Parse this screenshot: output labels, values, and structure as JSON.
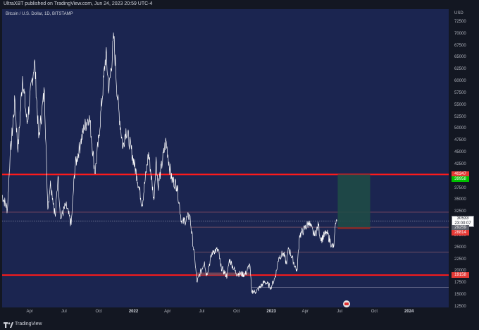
{
  "header": {
    "publisher": "UltraXBT published on TradingView.com, Jun 24, 2023 20:59 UTC-4"
  },
  "chart": {
    "symbol": "Bitcoin / U.S. Dollar, 1D, BITSTAMP",
    "currency": "USD"
  },
  "footer": {
    "brand": "TradingView"
  },
  "colors": {
    "background": "#1b2550",
    "line": "#ffffff",
    "support_resistance": "#ff1a1a",
    "target_zone": "#1e4d45",
    "stop_zone": "#7a2b2b",
    "take_profit": "#00c000",
    "stop_loss": "#e53935"
  },
  "icons": [
    "tradingview-logo-icon",
    "globe-icon"
  ],
  "chart_data": {
    "type": "line",
    "title": "Bitcoin / U.S. Dollar, 1D, BITSTAMP",
    "xlabel": "",
    "ylabel": "USD",
    "ylim": [
      12500,
      75000
    ],
    "grid": false,
    "price_ticks": [
      "72500",
      "70000",
      "67500",
      "65000",
      "62500",
      "60000",
      "57500",
      "55000",
      "52500",
      "50000",
      "47500",
      "45000",
      "42500",
      "40000",
      "37500",
      "35000",
      "32500",
      "30000",
      "27500",
      "25000",
      "22500",
      "20000",
      "17500",
      "15000",
      "12500"
    ],
    "price_tick_values": [
      72500,
      70000,
      67500,
      65000,
      62500,
      60000,
      57500,
      55000,
      52500,
      50000,
      47500,
      45000,
      42500,
      40000,
      37500,
      35000,
      32500,
      30000,
      27500,
      25000,
      22500,
      20000,
      17500,
      15000,
      12500
    ],
    "time_ticks": [
      {
        "label": "Apr",
        "date": "2021-04-01",
        "major": false
      },
      {
        "label": "Jul",
        "date": "2021-07-01",
        "major": false
      },
      {
        "label": "Oct",
        "date": "2021-10-01",
        "major": false
      },
      {
        "label": "2022",
        "date": "2022-01-01",
        "major": true
      },
      {
        "label": "Apr",
        "date": "2022-04-01",
        "major": false
      },
      {
        "label": "Jul",
        "date": "2022-07-01",
        "major": false
      },
      {
        "label": "Oct",
        "date": "2022-10-01",
        "major": false
      },
      {
        "label": "2023",
        "date": "2023-01-01",
        "major": true
      },
      {
        "label": "Apr",
        "date": "2023-04-01",
        "major": false
      },
      {
        "label": "Jul",
        "date": "2023-07-01",
        "major": false
      },
      {
        "label": "Oct",
        "date": "2023-10-01",
        "major": false
      },
      {
        "label": "2024",
        "date": "2024-01-01",
        "major": true
      }
    ],
    "x_range": [
      "2021-01-18",
      "2024-04-15"
    ],
    "series": [
      {
        "values": [
          [
            "2021-01-18",
            36000
          ],
          [
            "2021-02-01",
            33000
          ],
          [
            "2021-02-08",
            44000
          ],
          [
            "2021-02-21",
            56000
          ],
          [
            "2021-03-01",
            45000
          ],
          [
            "2021-03-13",
            61000
          ],
          [
            "2021-03-25",
            51000
          ],
          [
            "2021-04-14",
            64500
          ],
          [
            "2021-04-25",
            48000
          ],
          [
            "2021-05-10",
            58000
          ],
          [
            "2021-05-19",
            33000
          ],
          [
            "2021-05-26",
            39000
          ],
          [
            "2021-06-08",
            31500
          ],
          [
            "2021-06-15",
            40000
          ],
          [
            "2021-06-22",
            31000
          ],
          [
            "2021-07-06",
            34000
          ],
          [
            "2021-07-20",
            29800
          ],
          [
            "2021-07-30",
            42000
          ],
          [
            "2021-08-14",
            47000
          ],
          [
            "2021-08-23",
            50000
          ],
          [
            "2021-09-06",
            52800
          ],
          [
            "2021-09-21",
            40500
          ],
          [
            "2021-10-01",
            48000
          ],
          [
            "2021-10-20",
            66000
          ],
          [
            "2021-10-28",
            58000
          ],
          [
            "2021-11-10",
            69000
          ],
          [
            "2021-11-20",
            56000
          ],
          [
            "2021-12-04",
            46000
          ],
          [
            "2021-12-12",
            50000
          ],
          [
            "2021-12-22",
            47000
          ],
          [
            "2022-01-10",
            40000
          ],
          [
            "2022-01-24",
            34000
          ],
          [
            "2022-02-10",
            45000
          ],
          [
            "2022-02-24",
            35000
          ],
          [
            "2022-03-02",
            44000
          ],
          [
            "2022-03-07",
            37800
          ],
          [
            "2022-03-28",
            47500
          ],
          [
            "2022-04-11",
            39500
          ],
          [
            "2022-04-26",
            38000
          ],
          [
            "2022-05-09",
            30000
          ],
          [
            "2022-05-30",
            31700
          ],
          [
            "2022-06-13",
            22000
          ],
          [
            "2022-06-18",
            17700
          ],
          [
            "2022-07-08",
            22000
          ],
          [
            "2022-07-13",
            19000
          ],
          [
            "2022-07-30",
            24300
          ],
          [
            "2022-08-14",
            24400
          ],
          [
            "2022-08-20",
            21000
          ],
          [
            "2022-09-06",
            18800
          ],
          [
            "2022-09-12",
            22500
          ],
          [
            "2022-09-30",
            19500
          ],
          [
            "2022-10-24",
            19300
          ],
          [
            "2022-11-05",
            21400
          ],
          [
            "2022-11-10",
            15800
          ],
          [
            "2022-11-21",
            15600
          ],
          [
            "2022-12-15",
            17800
          ],
          [
            "2022-12-31",
            16600
          ],
          [
            "2023-01-12",
            18900
          ],
          [
            "2023-01-21",
            22900
          ],
          [
            "2023-02-02",
            23800
          ],
          [
            "2023-02-10",
            21600
          ],
          [
            "2023-02-16",
            24800
          ],
          [
            "2023-03-10",
            20000
          ],
          [
            "2023-03-17",
            27500
          ],
          [
            "2023-04-11",
            30200
          ],
          [
            "2023-04-25",
            27400
          ],
          [
            "2023-05-06",
            29600
          ],
          [
            "2023-05-12",
            26500
          ],
          [
            "2023-05-28",
            28200
          ],
          [
            "2023-06-10",
            25500
          ],
          [
            "2023-06-15",
            25000
          ],
          [
            "2023-06-21",
            30000
          ],
          [
            "2023-06-24",
            30533
          ]
        ]
      }
    ],
    "horizontal_lines": [
      {
        "price": 40347,
        "style": "solid",
        "color": "#ff1a1a",
        "width": 2,
        "start": "2021-01-18"
      },
      {
        "price": 19158,
        "style": "solid",
        "color": "#ff1a1a",
        "width": 2,
        "start": "2021-01-18"
      },
      {
        "price": 32400,
        "style": "thin",
        "color": "#b05a6a",
        "width": 0.7,
        "start": "2021-01-18"
      },
      {
        "price": 30533,
        "style": "dotted",
        "color": "#8a8fa8",
        "width": 0.7,
        "start": "2021-01-18"
      },
      {
        "price": 29259,
        "style": "thin",
        "color": "#8a5a6a",
        "width": 0.7,
        "start": "2022-06-01"
      },
      {
        "price": 24000,
        "style": "thin",
        "color": "#8a5a6a",
        "width": 0.7,
        "start": "2022-06-13"
      },
      {
        "price": 16600,
        "style": "thin",
        "color": "#7a7d99",
        "width": 0.7,
        "start": "2022-11-10"
      }
    ],
    "zones": [
      {
        "from_date": "2022-06-18",
        "to_date": "2022-11-05",
        "low": 19100,
        "high": 19700,
        "color": "#7a4a5a"
      }
    ],
    "position": {
      "entry": 29259,
      "take_profit": 40347,
      "stop_loss": 28814,
      "start": "2023-06-26",
      "end": "2023-09-20"
    },
    "price_labels": [
      {
        "text": "40347",
        "price": 40347,
        "color": "#e53935"
      },
      {
        "text": "39958",
        "price": 39400,
        "color": "#00c000"
      },
      {
        "text": "30533",
        "text2": "23:00:07",
        "price": 30533,
        "color": "#ffffff"
      },
      {
        "text": "29259",
        "price": 29200,
        "color": "#5d606b"
      },
      {
        "text": "28814",
        "price": 28100,
        "color": "#e53935"
      },
      {
        "text": "19158",
        "price": 19158,
        "color": "#e53935"
      }
    ]
  }
}
